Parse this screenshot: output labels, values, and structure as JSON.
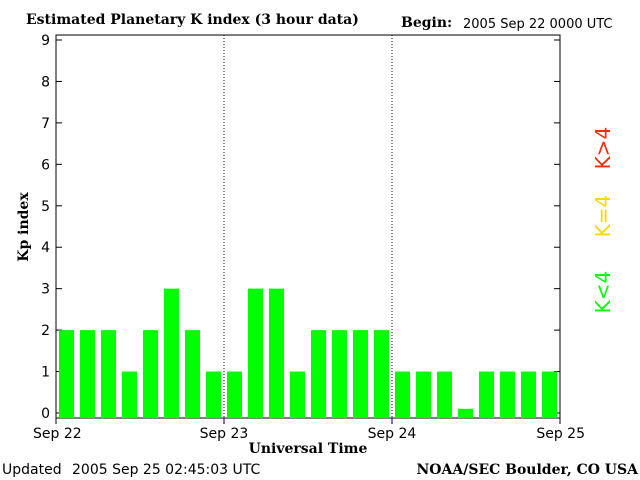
{
  "header": {
    "title": "Estimated Planetary K index (3 hour data)",
    "begin_label": "Begin:",
    "begin_value": "2005 Sep 22 0000 UTC"
  },
  "footer": {
    "updated_label": "Updated",
    "updated_value": "2005 Sep 25 02:45:03 UTC",
    "source": "NOAA/SEC Boulder, CO USA"
  },
  "legend": {
    "high": {
      "label": "K>4",
      "color": "#ff2a00"
    },
    "equal": {
      "label": "K=4",
      "color": "#ffd700"
    },
    "low": {
      "label": "K<4",
      "color": "#00ff00"
    }
  },
  "chart_data": {
    "type": "bar",
    "title": "Estimated Planetary K index (3 hour data)",
    "xlabel": "Universal Time",
    "ylabel": "Kp index",
    "ylim": [
      0,
      9
    ],
    "yticks": [
      0,
      1,
      2,
      3,
      4,
      5,
      6,
      7,
      8,
      9
    ],
    "xticks": [
      "Sep 22",
      "Sep 23",
      "Sep 24",
      "Sep 25"
    ],
    "bars_per_day": 8,
    "values": [
      2,
      2,
      2,
      1,
      2,
      3,
      2,
      1,
      1,
      3,
      3,
      1,
      2,
      2,
      2,
      2,
      1,
      1,
      1,
      0.1,
      1,
      1,
      1,
      1
    ],
    "grid": "dotted day separators",
    "legend_position": "right"
  }
}
